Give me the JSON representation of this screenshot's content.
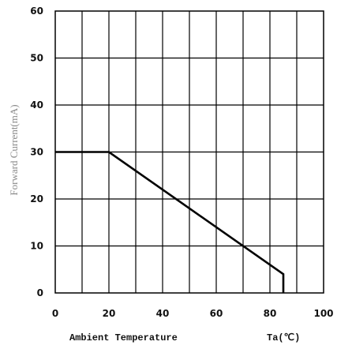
{
  "chart_data": {
    "type": "line",
    "title": "",
    "xlabel": "Ambient Temperature",
    "xlabel_unit": "Ta(℃)",
    "ylabel": "Forward Current(mA)",
    "xlim": [
      0,
      100
    ],
    "ylim": [
      0,
      60
    ],
    "x_ticks": [
      "0",
      "20",
      "40",
      "60",
      "80",
      "100"
    ],
    "y_ticks": [
      "0",
      "10",
      "20",
      "30",
      "40",
      "50",
      "60"
    ],
    "grid": true,
    "grid_x_step": 10,
    "grid_y_step": 10,
    "line_color": "#000000",
    "series": [
      {
        "x": [
          0,
          20,
          85,
          85
        ],
        "y": [
          30,
          30,
          4,
          0
        ]
      }
    ]
  }
}
